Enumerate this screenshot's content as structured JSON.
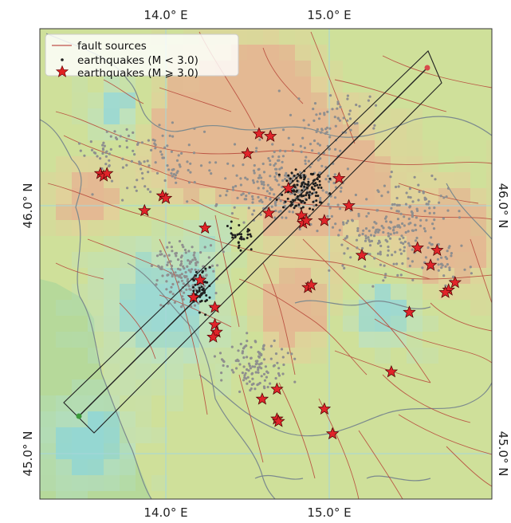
{
  "map": {
    "axes": {
      "lon_ticks": [
        {
          "label": "14.0° E"
        },
        {
          "label": "15.0° E"
        }
      ],
      "lat_ticks": [
        {
          "label": "46.0° N"
        },
        {
          "label": "45.0° N"
        }
      ]
    },
    "legend": {
      "placement": "top-left",
      "entries": [
        {
          "label": "fault sources",
          "symbol": "line",
          "color": "#c0504d"
        },
        {
          "label": "earthquakes (M < 3.0)",
          "symbol": "dot",
          "color": "#222222"
        },
        {
          "label": "earthquakes (M ⩾ 3.0)",
          "symbol": "star",
          "color": "#e02020"
        }
      ]
    },
    "colors": {
      "land": "#cfe09a",
      "sea": "#b9dca0",
      "fault": "#b84a3c",
      "coast": "#7f8a8c",
      "grid": "#9fd3d8",
      "profile": "#222222",
      "small_quake_grey": "#8a8a8a",
      "small_quake_dark": "#1e1e1e",
      "large_quake": "#e0242a",
      "profile_end_north": "#d84b4b",
      "profile_end_south": "#3a9a3a"
    },
    "large_quakes": [
      {
        "lon": 14.57,
        "lat": 46.29
      },
      {
        "lon": 14.64,
        "lat": 46.28
      },
      {
        "lon": 14.5,
        "lat": 46.21
      },
      {
        "lon": 13.6,
        "lat": 46.13
      },
      {
        "lon": 13.62,
        "lat": 46.12
      },
      {
        "lon": 13.64,
        "lat": 46.13
      },
      {
        "lon": 15.06,
        "lat": 46.11
      },
      {
        "lon": 14.75,
        "lat": 46.07
      },
      {
        "lon": 13.98,
        "lat": 46.04
      },
      {
        "lon": 14.0,
        "lat": 46.03
      },
      {
        "lon": 15.12,
        "lat": 46.0
      },
      {
        "lon": 13.87,
        "lat": 45.98
      },
      {
        "lon": 14.63,
        "lat": 45.97
      },
      {
        "lon": 14.83,
        "lat": 45.96
      },
      {
        "lon": 14.84,
        "lat": 45.93
      },
      {
        "lon": 14.86,
        "lat": 45.94
      },
      {
        "lon": 14.97,
        "lat": 45.94
      },
      {
        "lon": 14.24,
        "lat": 45.91
      },
      {
        "lon": 15.54,
        "lat": 45.83
      },
      {
        "lon": 15.66,
        "lat": 45.82
      },
      {
        "lon": 15.2,
        "lat": 45.8
      },
      {
        "lon": 15.62,
        "lat": 45.76
      },
      {
        "lon": 14.21,
        "lat": 45.7
      },
      {
        "lon": 14.87,
        "lat": 45.67
      },
      {
        "lon": 14.89,
        "lat": 45.68
      },
      {
        "lon": 15.77,
        "lat": 45.69
      },
      {
        "lon": 15.73,
        "lat": 45.66
      },
      {
        "lon": 15.71,
        "lat": 45.65
      },
      {
        "lon": 14.17,
        "lat": 45.63
      },
      {
        "lon": 14.3,
        "lat": 45.59
      },
      {
        "lon": 15.49,
        "lat": 45.57
      },
      {
        "lon": 14.3,
        "lat": 45.52
      },
      {
        "lon": 14.31,
        "lat": 45.49
      },
      {
        "lon": 14.29,
        "lat": 45.47
      },
      {
        "lon": 15.38,
        "lat": 45.33
      },
      {
        "lon": 14.68,
        "lat": 45.26
      },
      {
        "lon": 14.59,
        "lat": 45.22
      },
      {
        "lon": 14.97,
        "lat": 45.18
      },
      {
        "lon": 14.68,
        "lat": 45.14
      },
      {
        "lon": 14.69,
        "lat": 45.13
      },
      {
        "lon": 15.02,
        "lat": 45.08
      }
    ]
  }
}
